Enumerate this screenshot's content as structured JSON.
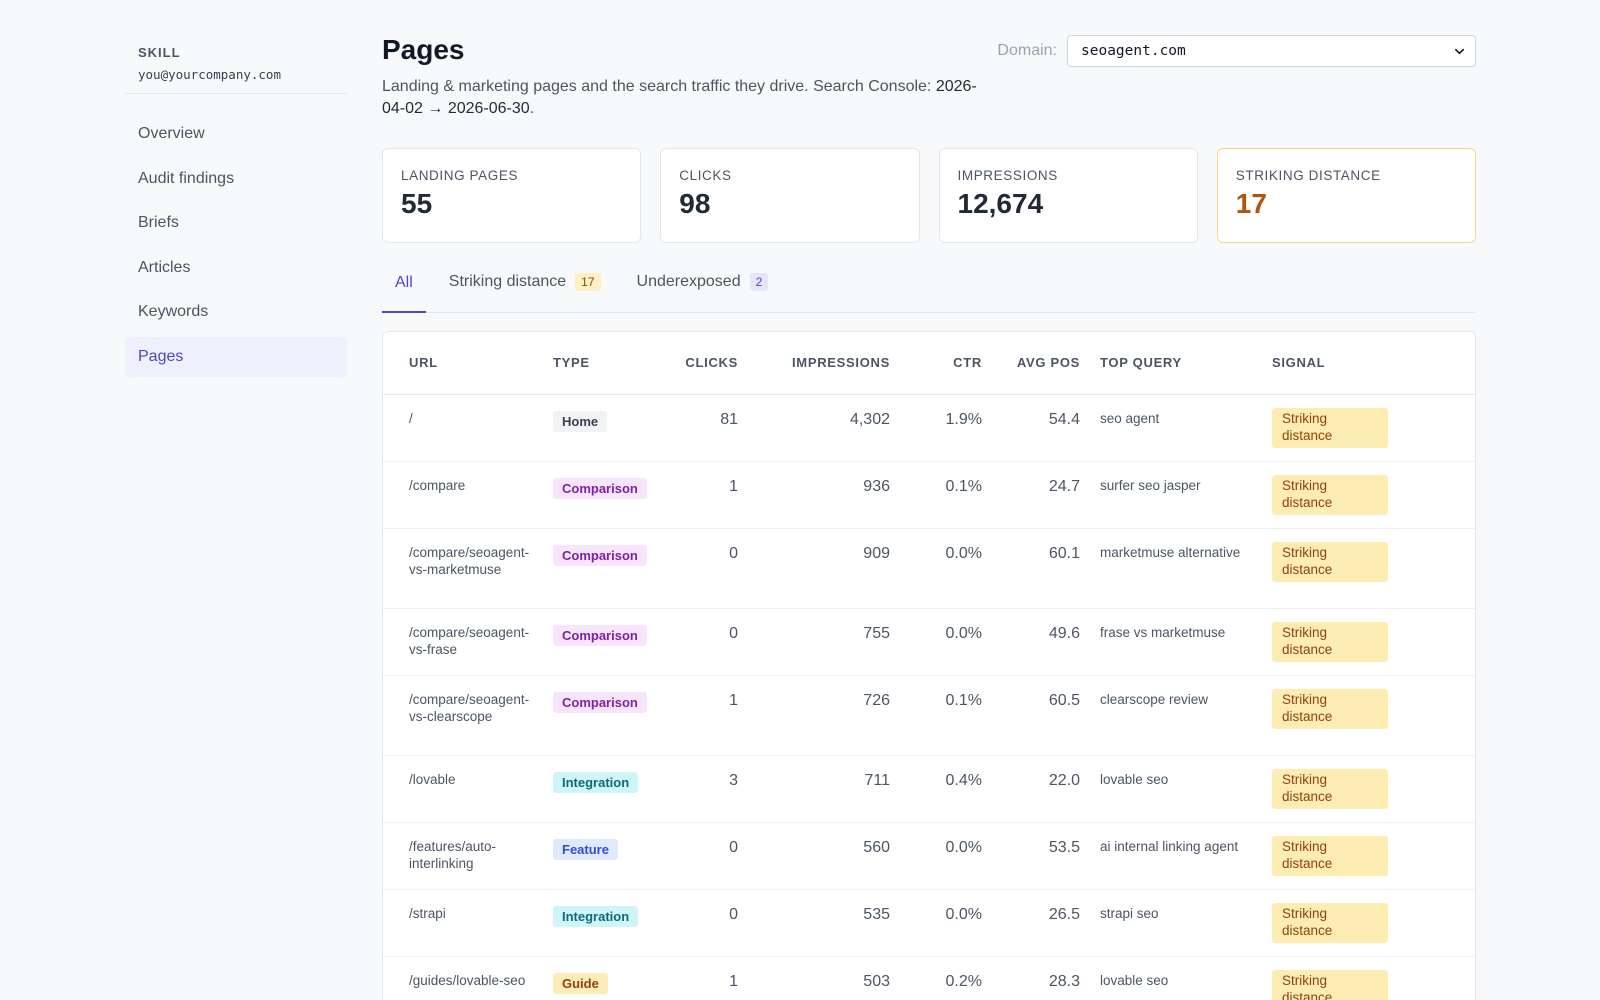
{
  "sidebar": {
    "workspace": "SKILL",
    "email": "you@yourcompany.com",
    "items": [
      {
        "label": "Overview"
      },
      {
        "label": "Audit findings"
      },
      {
        "label": "Briefs"
      },
      {
        "label": "Articles"
      },
      {
        "label": "Keywords"
      },
      {
        "label": "Pages"
      }
    ],
    "active": "Pages"
  },
  "header": {
    "title": "Pages",
    "subtitle_prefix": "Landing & marketing pages and the search traffic they drive. Search Console:",
    "date_start": "2026-04-02",
    "arrow": "→",
    "date_end": "2026-06-30",
    "period": ".",
    "domain_label": "Domain:",
    "domain_value": "seoagent.com"
  },
  "stats": [
    {
      "label": "LANDING PAGES",
      "value": "55"
    },
    {
      "label": "CLICKS",
      "value": "98"
    },
    {
      "label": "IMPRESSIONS",
      "value": "12,674"
    },
    {
      "label": "STRIKING DISTANCE",
      "value": "17"
    }
  ],
  "tabs": [
    {
      "label": "All"
    },
    {
      "label": "Striking distance",
      "count": "17"
    },
    {
      "label": "Underexposed",
      "count": "2"
    }
  ],
  "table": {
    "columns": [
      "URL",
      "TYPE",
      "CLICKS",
      "IMPRESSIONS",
      "CTR",
      "AVG POS",
      "TOP QUERY",
      "SIGNAL"
    ],
    "rows": [
      {
        "url": "/",
        "type": "Home",
        "clicks": "81",
        "impressions": "4,302",
        "ctr": "1.9%",
        "avg_pos": "54.4",
        "top_query": "seo agent",
        "signal": "Striking distance"
      },
      {
        "url": "/compare",
        "type": "Comparison",
        "clicks": "1",
        "impressions": "936",
        "ctr": "0.1%",
        "avg_pos": "24.7",
        "top_query": "surfer seo jasper",
        "signal": "Striking distance"
      },
      {
        "url": "/compare/seoagent-vs-marketmuse",
        "type": "Comparison",
        "clicks": "0",
        "impressions": "909",
        "ctr": "0.0%",
        "avg_pos": "60.1",
        "top_query": "marketmuse alternative",
        "signal": "Striking distance"
      },
      {
        "url": "/compare/seoagent-vs-frase",
        "type": "Comparison",
        "clicks": "0",
        "impressions": "755",
        "ctr": "0.0%",
        "avg_pos": "49.6",
        "top_query": "frase vs marketmuse",
        "signal": "Striking distance"
      },
      {
        "url": "/compare/seoagent-vs-clearscope",
        "type": "Comparison",
        "clicks": "1",
        "impressions": "726",
        "ctr": "0.1%",
        "avg_pos": "60.5",
        "top_query": "clearscope review",
        "signal": "Striking distance"
      },
      {
        "url": "/lovable",
        "type": "Integration",
        "clicks": "3",
        "impressions": "711",
        "ctr": "0.4%",
        "avg_pos": "22.0",
        "top_query": "lovable seo",
        "signal": "Striking distance"
      },
      {
        "url": "/features/auto-interlinking",
        "type": "Feature",
        "clicks": "0",
        "impressions": "560",
        "ctr": "0.0%",
        "avg_pos": "53.5",
        "top_query": "ai internal linking agent",
        "signal": "Striking distance"
      },
      {
        "url": "/strapi",
        "type": "Integration",
        "clicks": "0",
        "impressions": "535",
        "ctr": "0.0%",
        "avg_pos": "26.5",
        "top_query": "strapi seo",
        "signal": "Striking distance"
      },
      {
        "url": "/guides/lovable-seo",
        "type": "Guide",
        "clicks": "1",
        "impressions": "503",
        "ctr": "0.2%",
        "avg_pos": "28.3",
        "top_query": "lovable seo",
        "signal": "Striking distance"
      }
    ]
  },
  "colors": {
    "accent": "#4f46c5",
    "striking": "#b4530e",
    "signal_bg": "#fdedb3"
  }
}
